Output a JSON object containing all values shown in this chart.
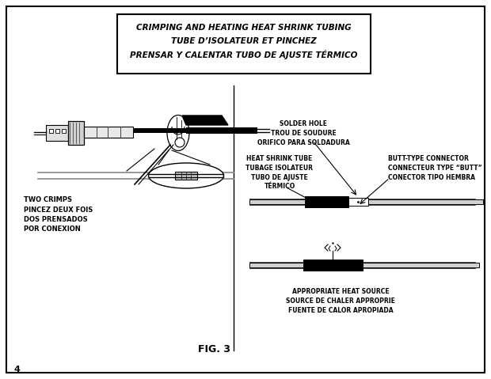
{
  "title_line1": "CRIMPING AND HEATING HEAT SHRINK TUBING",
  "title_line2": "TUBE D’ISOLATEUR ET PINCHEZ",
  "title_line3": "PRENSAR Y CALENTAR TUBO DE AJUSTE TÉRMICO",
  "fig_label": "FIG. 3",
  "page_number": "4",
  "label_two_crimps": "TWO CRIMPS\nPINCEZ DEUX FOIS\nDOS PRENSADOS\nPOR CONEXION",
  "label_solder_hole": "SOLDER HOLE\nTROU DE SOUDURE\nORIFICO PARA SOLDADURA",
  "label_heat_shrink": "HEAT SHRINK TUBE\nTUBAGE ISOLATEUR\nTUBO DE AJUSTE\nTÉRMICO",
  "label_butt_connector": "BUTT-TYPE CONNECTOR\nCONNECTEUR TYPE “BUTT”\nCONECTOR TIPO HEMBRA",
  "label_heat_source": "APPROPRIATE HEAT SOURCE\nSOURCE DE CHALER APPROPRIE\nFUENTE DE CALOR APROPIADA",
  "bg_color": "#ffffff",
  "border_color": "#000000",
  "text_color": "#000000"
}
